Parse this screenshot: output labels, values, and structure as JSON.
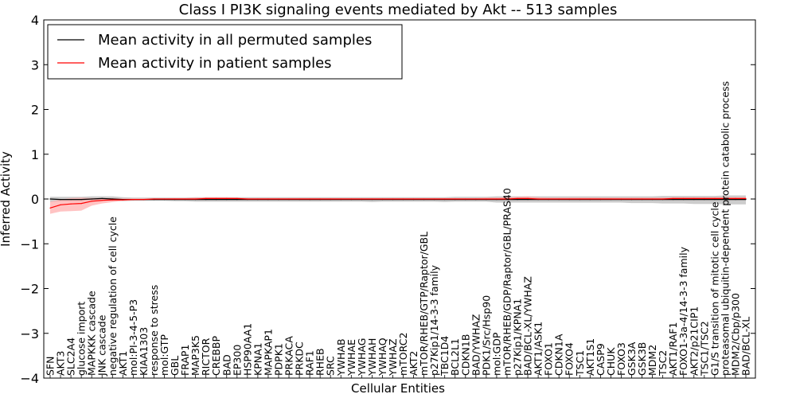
{
  "chart_data": {
    "type": "line",
    "title": "Class I PI3K signaling events mediated by Akt -- 513 samples",
    "xlabel": "Cellular Entities",
    "ylabel": "Inferred Activity",
    "ylim": [
      -4,
      4
    ],
    "yticks": [
      -4,
      -3,
      -2,
      -1,
      0,
      1,
      2,
      3,
      4
    ],
    "legend_position": "top-left",
    "categories": [
      "SFN",
      "AKT3",
      "SLC2A4",
      "glucose import",
      "MAPKKK cascade",
      "JNK cascade",
      "negative regulation of cell cycle",
      "AKT1",
      "mol:PI-3-4-5-P3",
      "KIAA1303",
      "response to stress",
      "mol:GTP",
      "GBL",
      "FRAP1",
      "MAP3K5",
      "RICTOR",
      "CREBBP",
      "BAD",
      "EP300",
      "HSP90AA1",
      "KPNA1",
      "MAPKAP1",
      "PDPK1",
      "PRKACA",
      "PRKDC",
      "RAF1",
      "RHEB",
      "SRC",
      "YWHAB",
      "YWHAE",
      "YWHAG",
      "YWHAH",
      "YWHAQ",
      "YWHAZ",
      "mTORC2",
      "AKT2",
      "mTOR/RHEB/GTP/Raptor/GBL",
      "p27Kip1/14-3-3 family",
      "TBC1D4",
      "BCL2L1",
      "CDKN1B",
      "BAD/YWHAZ",
      "PDK1/Src/Hsp90",
      "mol:GDP",
      "mTOR/RHEB/GDP/Raptor/GBL/PRAS40",
      "p27Kip1/KPNA1",
      "BAD/BCL-XL/YWHAZ",
      "AKT1/ASK1",
      "FOXO1",
      "CDKN1A",
      "FOXO4",
      "TSC1",
      "AKT1S1",
      "CASP9",
      "CHUK",
      "FOXO3",
      "GSK3A",
      "GSK3B",
      "MDM2",
      "TSC2",
      "AKT1/RAF1",
      "FOXO1-3a-4/14-3-3 family",
      "AKT2/p21CIP1",
      "TSC1/TSC2",
      "G1/S transition of mitotic cell cycle",
      "proteasomal ubiquitin-dependent protein catabolic process",
      "MDM2/Cbp/p300",
      "BAD/BCL-XL"
    ],
    "series": [
      {
        "name": "Mean activity in all permuted samples",
        "color": "#000000",
        "band_color": "#bbbbbb",
        "values": [
          0.0,
          -0.01,
          -0.01,
          -0.01,
          0.0,
          0.01,
          0.0,
          -0.01,
          -0.01,
          -0.01,
          -0.01,
          -0.01,
          -0.01,
          -0.01,
          -0.01,
          -0.01,
          -0.01,
          -0.01,
          -0.01,
          -0.01,
          -0.01,
          -0.01,
          -0.01,
          -0.01,
          -0.01,
          -0.01,
          -0.01,
          -0.01,
          -0.01,
          -0.01,
          -0.01,
          -0.01,
          -0.01,
          -0.01,
          -0.01,
          -0.01,
          -0.01,
          -0.01,
          -0.01,
          -0.01,
          -0.01,
          -0.01,
          -0.01,
          -0.01,
          -0.01,
          -0.01,
          -0.01,
          -0.01,
          -0.01,
          -0.01,
          -0.01,
          -0.01,
          -0.01,
          -0.01,
          -0.01,
          -0.01,
          -0.01,
          -0.01,
          -0.01,
          -0.01,
          -0.01,
          -0.01,
          -0.01,
          -0.01,
          -0.01,
          -0.01,
          -0.01,
          -0.01
        ],
        "band_lower": [
          -0.07,
          -0.05,
          -0.05,
          -0.05,
          -0.04,
          -0.04,
          -0.04,
          -0.05,
          -0.04,
          -0.04,
          -0.04,
          -0.04,
          -0.05,
          -0.05,
          -0.06,
          -0.06,
          -0.06,
          -0.06,
          -0.06,
          -0.06,
          -0.06,
          -0.06,
          -0.06,
          -0.06,
          -0.06,
          -0.06,
          -0.06,
          -0.06,
          -0.06,
          -0.06,
          -0.06,
          -0.07,
          -0.06,
          -0.06,
          -0.06,
          -0.06,
          -0.06,
          -0.06,
          -0.07,
          -0.06,
          -0.06,
          -0.06,
          -0.06,
          -0.08,
          -0.08,
          -0.08,
          -0.08,
          -0.08,
          -0.08,
          -0.08,
          -0.08,
          -0.08,
          -0.08,
          -0.08,
          -0.08,
          -0.08,
          -0.09,
          -0.09,
          -0.09,
          -0.1,
          -0.1,
          -0.1,
          -0.11,
          -0.11,
          -0.11,
          -0.12,
          -0.12,
          -0.12
        ],
        "band_upper": [
          0.05,
          0.05,
          0.05,
          0.05,
          0.06,
          0.06,
          0.06,
          0.04,
          0.03,
          0.03,
          0.03,
          0.03,
          0.03,
          0.03,
          0.04,
          0.04,
          0.04,
          0.04,
          0.04,
          0.04,
          0.04,
          0.04,
          0.04,
          0.04,
          0.04,
          0.04,
          0.04,
          0.04,
          0.04,
          0.04,
          0.04,
          0.04,
          0.04,
          0.04,
          0.04,
          0.04,
          0.04,
          0.04,
          0.04,
          0.05,
          0.05,
          0.05,
          0.05,
          0.06,
          0.06,
          0.06,
          0.06,
          0.06,
          0.06,
          0.06,
          0.06,
          0.06,
          0.06,
          0.06,
          0.06,
          0.06,
          0.06,
          0.06,
          0.06,
          0.07,
          0.07,
          0.07,
          0.07,
          0.07,
          0.07,
          0.08,
          0.08,
          0.08
        ]
      },
      {
        "name": "Mean activity in patient samples",
        "color": "#ff0000",
        "band_color": "#ffaaaa",
        "values": [
          -0.2,
          -0.13,
          -0.11,
          -0.1,
          -0.05,
          -0.03,
          -0.02,
          -0.02,
          -0.01,
          -0.01,
          0.0,
          0.0,
          0.0,
          0.0,
          0.0,
          0.01,
          0.01,
          0.01,
          0.01,
          0.0,
          0.0,
          0.0,
          0.0,
          0.0,
          0.0,
          0.0,
          0.0,
          0.0,
          0.0,
          0.0,
          0.0,
          0.0,
          0.0,
          0.0,
          0.0,
          0.0,
          0.0,
          0.0,
          0.0,
          0.0,
          0.0,
          0.0,
          0.0,
          0.0,
          0.0,
          0.01,
          0.01,
          0.0,
          0.0,
          0.0,
          0.0,
          0.0,
          0.0,
          0.0,
          0.0,
          0.0,
          0.0,
          0.0,
          0.0,
          0.0,
          0.01,
          0.01,
          0.01,
          0.01,
          0.01,
          0.01,
          0.01,
          0.01
        ],
        "band_lower": [
          -0.33,
          -0.28,
          -0.27,
          -0.26,
          -0.15,
          -0.1,
          -0.07,
          -0.04,
          -0.03,
          -0.02,
          -0.02,
          -0.01,
          -0.01,
          -0.01,
          -0.02,
          -0.02,
          -0.01,
          -0.01,
          -0.01,
          -0.02,
          -0.02,
          -0.02,
          -0.02,
          -0.02,
          -0.02,
          -0.02,
          -0.02,
          -0.02,
          -0.02,
          -0.02,
          -0.02,
          -0.02,
          -0.02,
          -0.02,
          -0.02,
          -0.02,
          -0.02,
          -0.02,
          -0.02,
          -0.02,
          -0.02,
          -0.02,
          -0.02,
          -0.02,
          -0.02,
          -0.02,
          -0.02,
          -0.02,
          -0.02,
          -0.02,
          -0.02,
          -0.02,
          -0.02,
          -0.02,
          -0.02,
          -0.02,
          -0.02,
          -0.02,
          -0.02,
          -0.02,
          -0.02,
          -0.02,
          -0.02,
          -0.02,
          -0.02,
          -0.02,
          -0.02,
          -0.02
        ],
        "band_upper": [
          -0.06,
          -0.01,
          0.02,
          0.03,
          0.02,
          0.02,
          0.02,
          0.01,
          0.01,
          0.01,
          0.01,
          0.01,
          0.02,
          0.02,
          0.03,
          0.04,
          0.04,
          0.04,
          0.03,
          0.02,
          0.02,
          0.02,
          0.02,
          0.02,
          0.02,
          0.02,
          0.02,
          0.02,
          0.02,
          0.02,
          0.02,
          0.02,
          0.02,
          0.02,
          0.02,
          0.02,
          0.02,
          0.02,
          0.02,
          0.02,
          0.02,
          0.02,
          0.03,
          0.03,
          0.04,
          0.05,
          0.06,
          0.04,
          0.03,
          0.03,
          0.03,
          0.03,
          0.03,
          0.03,
          0.03,
          0.03,
          0.03,
          0.03,
          0.03,
          0.03,
          0.04,
          0.04,
          0.04,
          0.04,
          0.04,
          0.04,
          0.04,
          0.04
        ]
      }
    ]
  }
}
